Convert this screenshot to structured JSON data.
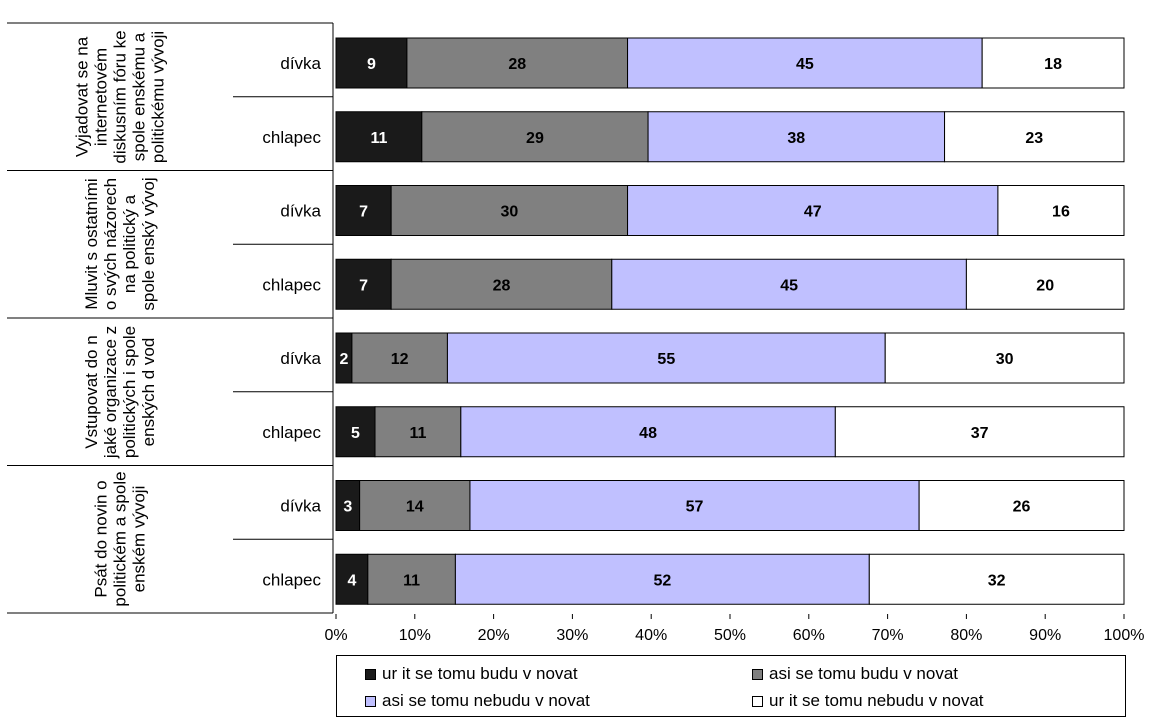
{
  "chart_data": {
    "type": "bar",
    "orientation": "horizontal",
    "stacked": "percent",
    "xlim": [
      0,
      100
    ],
    "xticks": [
      "0%",
      "10%",
      "20%",
      "30%",
      "40%",
      "50%",
      "60%",
      "70%",
      "80%",
      "90%",
      "100%"
    ],
    "groups": [
      {
        "label": "Vyjadovat se na internetovém diskusním fóru ke spole enskému a politickému vývoji",
        "rows": [
          {
            "label": "dívka",
            "values": [
              9,
              28,
              45,
              18
            ]
          },
          {
            "label": "chlapec",
            "values": [
              11,
              29,
              38,
              23
            ]
          }
        ]
      },
      {
        "label": "Mluvit s ostatními o svých názorech na politický a spole enský vývoj",
        "rows": [
          {
            "label": "dívka",
            "values": [
              7,
              30,
              47,
              16
            ]
          },
          {
            "label": "chlapec",
            "values": [
              7,
              28,
              45,
              20
            ]
          }
        ]
      },
      {
        "label": "Vstupovat do n jaké organizace z politických i spole enských d vod",
        "rows": [
          {
            "label": "dívka",
            "values": [
              2,
              12,
              55,
              30
            ]
          },
          {
            "label": "chlapec",
            "values": [
              5,
              11,
              48,
              37
            ]
          }
        ]
      },
      {
        "label": "Psát do novin o politickém a spole enském vývoji",
        "rows": [
          {
            "label": "dívka",
            "values": [
              3,
              14,
              57,
              26
            ]
          },
          {
            "label": "chlapec",
            "values": [
              4,
              11,
              52,
              32
            ]
          }
        ]
      }
    ],
    "series": [
      {
        "name": "ur it se tomu budu v novat",
        "color": "#1a1a1a",
        "label_color": "#ffffff"
      },
      {
        "name": "asi se tomu budu v novat",
        "color": "#808080",
        "label_color": "#000000"
      },
      {
        "name": "asi se tomu nebudu v novat",
        "color": "#c0c0ff",
        "label_color": "#000000"
      },
      {
        "name": "ur it se tomu nebudu v novat",
        "color": "#ffffff",
        "label_color": "#000000"
      }
    ],
    "legend_position": "bottom",
    "grid": false
  }
}
